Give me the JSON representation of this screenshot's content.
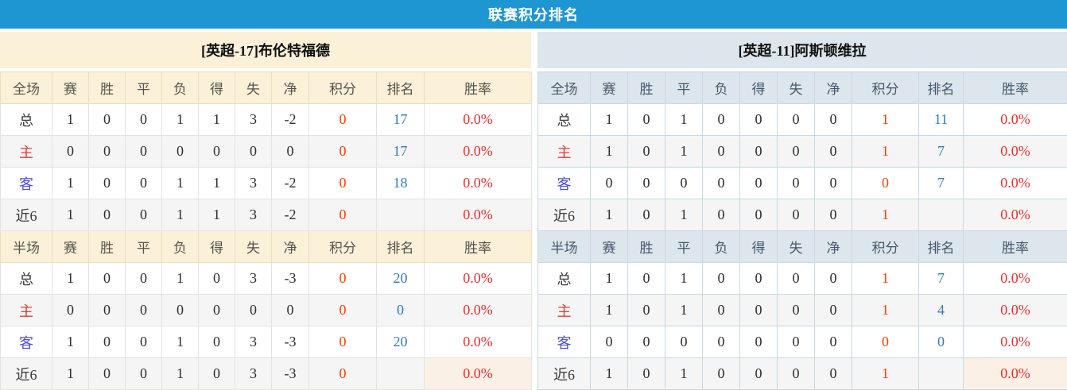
{
  "title": "联赛积分排名",
  "colors": {
    "title_bar": "#1E96D2",
    "left_header_bg": "#FBF0D8",
    "right_header_bg": "#DDE6EC",
    "alt_row_bg": "#F5F5F5",
    "rate_highlight_bg": "#FAF0E5",
    "points_color": "#FF4000",
    "rank_color": "#2E7CC3",
    "rate_color": "#EF2D2D",
    "home_label_color": "#E23C3C",
    "away_label_color": "#4D4DE0"
  },
  "stat_columns": [
    "赛",
    "胜",
    "平",
    "负",
    "得",
    "失",
    "净",
    "积分",
    "排名",
    "胜率"
  ],
  "teams": [
    {
      "name": "[英超-17]布伦特福德",
      "sections": [
        {
          "label": "全场",
          "rows": [
            {
              "label": "总",
              "type": "total",
              "stats": [
                "1",
                "0",
                "0",
                "1",
                "1",
                "3",
                "-2"
              ],
              "points": "0",
              "rank": "17",
              "rate": "0.0%"
            },
            {
              "label": "主",
              "type": "home",
              "stats": [
                "0",
                "0",
                "0",
                "0",
                "0",
                "0",
                "0"
              ],
              "points": "0",
              "rank": "17",
              "rate": "0.0%"
            },
            {
              "label": "客",
              "type": "away",
              "stats": [
                "1",
                "0",
                "0",
                "1",
                "1",
                "3",
                "-2"
              ],
              "points": "0",
              "rank": "18",
              "rate": "0.0%"
            },
            {
              "label": "近6",
              "type": "near",
              "stats": [
                "1",
                "0",
                "0",
                "1",
                "1",
                "3",
                "-2"
              ],
              "points": "0",
              "rank": "",
              "rate": "0.0%"
            }
          ]
        },
        {
          "label": "半场",
          "rows": [
            {
              "label": "总",
              "type": "total",
              "stats": [
                "1",
                "0",
                "0",
                "1",
                "0",
                "3",
                "-3"
              ],
              "points": "0",
              "rank": "20",
              "rate": "0.0%"
            },
            {
              "label": "主",
              "type": "home",
              "stats": [
                "0",
                "0",
                "0",
                "0",
                "0",
                "0",
                "0"
              ],
              "points": "0",
              "rank": "0",
              "rate": "0.0%"
            },
            {
              "label": "客",
              "type": "away",
              "stats": [
                "1",
                "0",
                "0",
                "1",
                "0",
                "3",
                "-3"
              ],
              "points": "0",
              "rank": "20",
              "rate": "0.0%"
            },
            {
              "label": "近6",
              "type": "near",
              "stats": [
                "1",
                "0",
                "0",
                "1",
                "0",
                "3",
                "-3"
              ],
              "points": "0",
              "rank": "",
              "rate": "0.0%",
              "rate_highlight": true
            }
          ]
        }
      ]
    },
    {
      "name": "[英超-11]阿斯顿维拉",
      "sections": [
        {
          "label": "全场",
          "rows": [
            {
              "label": "总",
              "type": "total",
              "stats": [
                "1",
                "0",
                "1",
                "0",
                "0",
                "0",
                "0"
              ],
              "points": "1",
              "rank": "11",
              "rate": "0.0%"
            },
            {
              "label": "主",
              "type": "home",
              "stats": [
                "1",
                "0",
                "1",
                "0",
                "0",
                "0",
                "0"
              ],
              "points": "1",
              "rank": "7",
              "rate": "0.0%"
            },
            {
              "label": "客",
              "type": "away",
              "stats": [
                "0",
                "0",
                "0",
                "0",
                "0",
                "0",
                "0"
              ],
              "points": "0",
              "rank": "7",
              "rate": "0.0%"
            },
            {
              "label": "近6",
              "type": "near",
              "stats": [
                "1",
                "0",
                "1",
                "0",
                "0",
                "0",
                "0"
              ],
              "points": "1",
              "rank": "",
              "rate": "0.0%"
            }
          ]
        },
        {
          "label": "半场",
          "rows": [
            {
              "label": "总",
              "type": "total",
              "stats": [
                "1",
                "0",
                "1",
                "0",
                "0",
                "0",
                "0"
              ],
              "points": "1",
              "rank": "7",
              "rate": "0.0%"
            },
            {
              "label": "主",
              "type": "home",
              "stats": [
                "1",
                "0",
                "1",
                "0",
                "0",
                "0",
                "0"
              ],
              "points": "1",
              "rank": "4",
              "rate": "0.0%"
            },
            {
              "label": "客",
              "type": "away",
              "stats": [
                "0",
                "0",
                "0",
                "0",
                "0",
                "0",
                "0"
              ],
              "points": "0",
              "rank": "0",
              "rate": "0.0%"
            },
            {
              "label": "近6",
              "type": "near",
              "stats": [
                "1",
                "0",
                "1",
                "0",
                "0",
                "0",
                "0"
              ],
              "points": "1",
              "rank": "",
              "rate": "0.0%",
              "rate_highlight": true
            }
          ]
        }
      ]
    }
  ]
}
